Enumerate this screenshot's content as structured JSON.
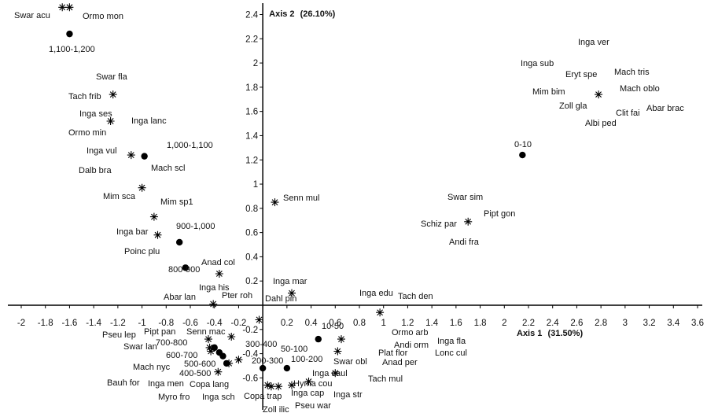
{
  "chart_data": {
    "type": "scatter",
    "x_axis": {
      "title": "Axis 1",
      "title_pct": "(31.50%)",
      "range": [
        -2,
        3.6
      ],
      "ticks": [
        "-2",
        "-1.8",
        "-1.6",
        "-1.4",
        "-1.2",
        "-1",
        "-0.8",
        "-0.6",
        "-0.4",
        "-0.2",
        "0",
        "0.2",
        "0.4",
        "0.6",
        "0.8",
        "1",
        "1.2",
        "1.4",
        "1.6",
        "1.8",
        "2",
        "2.2",
        "2.4",
        "2.6",
        "2.8",
        "3",
        "3.2",
        "3.4",
        "3.6"
      ]
    },
    "y_axis": {
      "title": "Axis 2",
      "title_pct": "(26.10%)",
      "range": [
        -0.7,
        2.5
      ],
      "ticks": [
        "-0.6",
        "-0.4",
        "-0.2",
        "0.2",
        "0.4",
        "0.6",
        "0.8",
        "1",
        "1.2",
        "1.4",
        "1.6",
        "1.8",
        "2",
        "2.2",
        "2.4"
      ]
    },
    "grid": false,
    "series": [
      {
        "marker": "star",
        "points": [
          {
            "x": -1.66,
            "y": 2.46,
            "label": "Swar acu"
          },
          {
            "x": -1.6,
            "y": 2.46,
            "label": "Ormo mon"
          },
          {
            "x": -1.24,
            "y": 1.74,
            "label": "Swar fla"
          },
          {
            "x": -1.24,
            "y": 1.74,
            "label": "Tach frib"
          },
          {
            "x": -1.26,
            "y": 1.52,
            "label": "Inga ses"
          },
          {
            "x": -1.26,
            "y": 1.52,
            "label": "Inga lanc"
          },
          {
            "x": -1.26,
            "y": 1.52,
            "label": "Ormo min"
          },
          {
            "x": -1.09,
            "y": 1.24,
            "label": "Inga vul"
          },
          {
            "x": -1.09,
            "y": 1.24,
            "label": "Dalb bra"
          },
          {
            "x": -1.0,
            "y": 0.97,
            "label": "Mim sca"
          },
          {
            "x": -1.0,
            "y": 0.97,
            "label": "Mim sp1"
          },
          {
            "x": -0.9,
            "y": 0.73,
            "label": "Inga bar"
          },
          {
            "x": -0.87,
            "y": 0.58,
            "label": "Poinc plu"
          },
          {
            "x": -0.36,
            "y": 0.26,
            "label": "Anad col"
          },
          {
            "x": -0.36,
            "y": 0.26,
            "label": "Inga his"
          },
          {
            "x": -0.41,
            "y": 0.01,
            "label": "Abar lan"
          },
          {
            "x": -0.41,
            "y": 0.01,
            "label": "Pter roh"
          },
          {
            "x": 0.1,
            "y": 0.85,
            "label": "Senn mul"
          },
          {
            "x": 0.24,
            "y": 0.1,
            "label": "Inga mar"
          },
          {
            "x": 0.24,
            "y": 0.1,
            "label": "Dahl pin"
          },
          {
            "x": 0.97,
            "y": -0.06,
            "label": "Inga edu"
          },
          {
            "x": 0.97,
            "y": -0.06,
            "label": "Tach den"
          },
          {
            "x": 1.7,
            "y": 0.69,
            "label": "Swar sim"
          },
          {
            "x": 1.7,
            "y": 0.69,
            "label": "Pipt gon"
          },
          {
            "x": 1.7,
            "y": 0.69,
            "label": "Schiz par"
          },
          {
            "x": 1.7,
            "y": 0.69,
            "label": "Andi fra"
          },
          {
            "x": 2.78,
            "y": 1.74,
            "label": "Inga ver"
          },
          {
            "x": 2.78,
            "y": 1.74,
            "label": "Inga sub"
          },
          {
            "x": 2.78,
            "y": 1.74,
            "label": "Mach tris"
          },
          {
            "x": 2.78,
            "y": 1.74,
            "label": "Eryt spe"
          },
          {
            "x": 2.78,
            "y": 1.74,
            "label": "Mach oblo"
          },
          {
            "x": 2.78,
            "y": 1.74,
            "label": "Mim bim"
          },
          {
            "x": 2.78,
            "y": 1.74,
            "label": "Zoll gla"
          },
          {
            "x": 2.78,
            "y": 1.74,
            "label": "Clit fai"
          },
          {
            "x": 2.78,
            "y": 1.74,
            "label": "Abar brac"
          },
          {
            "x": 2.78,
            "y": 1.74,
            "label": "Albi ped"
          },
          {
            "x": -0.45,
            "y": -0.28,
            "label": "Pseu lep"
          },
          {
            "x": -0.26,
            "y": -0.26,
            "label": "Pipt pan"
          },
          {
            "x": -0.26,
            "y": -0.26,
            "label": "Senn mac"
          },
          {
            "x": -0.44,
            "y": -0.35,
            "label": "Swar lan"
          },
          {
            "x": -0.43,
            "y": -0.38,
            "label": "Mach nyc"
          },
          {
            "x": -0.43,
            "y": -0.38,
            "label": "Bauh for"
          },
          {
            "x": -0.37,
            "y": -0.55,
            "label": "Inga men"
          },
          {
            "x": -0.37,
            "y": -0.55,
            "label": "Myro fro"
          },
          {
            "x": -0.28,
            "y": -0.48,
            "label": "Copa lang"
          },
          {
            "x": -0.2,
            "y": -0.45,
            "label": "Inga sch"
          },
          {
            "x": -0.03,
            "y": -0.12,
            "label": "Copa trap"
          },
          {
            "x": 0.04,
            "y": -0.66,
            "label": "Zoll ilic"
          },
          {
            "x": 0.13,
            "y": -0.67,
            "label": "Inga cap"
          },
          {
            "x": 0.24,
            "y": -0.66,
            "label": "Pseu war"
          },
          {
            "x": 0.38,
            "y": -0.63,
            "label": "Hyma cou"
          },
          {
            "x": 0.38,
            "y": -0.63,
            "label": "Inga caul"
          },
          {
            "x": 0.6,
            "y": -0.56,
            "label": "Inga str"
          },
          {
            "x": 0.6,
            "y": -0.56,
            "label": "Swar obl"
          },
          {
            "x": 0.62,
            "y": -0.38,
            "label": "Ormo arb"
          },
          {
            "x": 0.62,
            "y": -0.38,
            "label": "Andi orm"
          },
          {
            "x": 0.62,
            "y": -0.38,
            "label": "Plat flor"
          },
          {
            "x": 0.62,
            "y": -0.38,
            "label": "Anad per"
          },
          {
            "x": 0.62,
            "y": -0.38,
            "label": "Tach mul"
          },
          {
            "x": 0.65,
            "y": -0.28,
            "label": "Inga fla"
          },
          {
            "x": 0.65,
            "y": -0.28,
            "label": "Lonc cul"
          },
          {
            "x": 0.07,
            "y": -0.67,
            "label": ""
          }
        ]
      },
      {
        "marker": "dot",
        "points": [
          {
            "x": -1.6,
            "y": 2.24,
            "label": "1,100-1,200"
          },
          {
            "x": -0.98,
            "y": 1.23,
            "label": "1,000-1,100"
          },
          {
            "x": -0.98,
            "y": 1.23,
            "label": "Mach scl"
          },
          {
            "x": -0.69,
            "y": 0.52,
            "label": "900-1,000"
          },
          {
            "x": -0.64,
            "y": 0.31,
            "label": "800-900"
          },
          {
            "x": 2.15,
            "y": 1.24,
            "label": "0-10"
          },
          {
            "x": 0.46,
            "y": -0.28,
            "label": "10-50"
          },
          {
            "x": 0.2,
            "y": -0.52,
            "label": "50-100"
          },
          {
            "x": 0.2,
            "y": -0.52,
            "label": "100-200"
          },
          {
            "x": 0.0,
            "y": -0.52,
            "label": "200-300"
          },
          {
            "x": 0.0,
            "y": -0.52,
            "label": "300-400"
          },
          {
            "x": -0.3,
            "y": -0.48,
            "label": "400-500"
          },
          {
            "x": -0.33,
            "y": -0.42,
            "label": "500-600"
          },
          {
            "x": -0.36,
            "y": -0.39,
            "label": "600-700"
          },
          {
            "x": -0.4,
            "y": -0.35,
            "label": "700-800"
          }
        ]
      }
    ]
  }
}
